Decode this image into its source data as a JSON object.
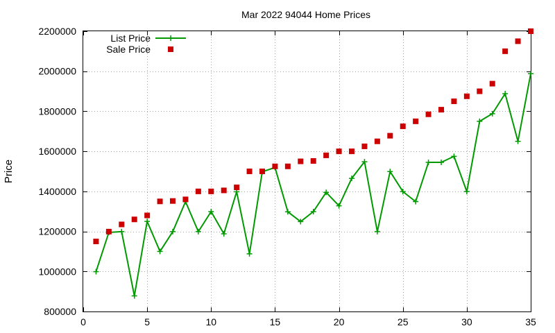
{
  "chart_data": {
    "type": "line",
    "title": "Mar 2022 94044 Home Prices",
    "xlabel": "",
    "ylabel": "Price",
    "xlim": [
      0,
      35
    ],
    "ylim": [
      800000,
      2200000
    ],
    "x_ticks": [
      0,
      5,
      10,
      15,
      20,
      25,
      30,
      35
    ],
    "y_ticks": [
      800000,
      1000000,
      1200000,
      1400000,
      1600000,
      1800000,
      2000000,
      2200000
    ],
    "x_tick_labels": [
      "0",
      "5",
      "10",
      "15",
      "20",
      "25",
      "30",
      "35"
    ],
    "y_tick_labels": [
      "800000",
      "1000000",
      "1200000",
      "1400000",
      "1600000",
      "1800000",
      "2000000",
      "2200000"
    ],
    "grid": true,
    "legend_position": "top-left",
    "series": [
      {
        "name": "List Price",
        "style": "line-plus",
        "color": "#009900",
        "x": [
          1,
          2,
          3,
          4,
          5,
          6,
          7,
          8,
          9,
          10,
          11,
          12,
          13,
          14,
          15,
          16,
          17,
          18,
          19,
          20,
          21,
          22,
          23,
          24,
          25,
          26,
          27,
          28,
          29,
          30,
          31,
          32,
          33,
          34,
          35
        ],
        "y": [
          999000,
          1195000,
          1199000,
          878000,
          1250000,
          1100000,
          1199000,
          1349000,
          1199000,
          1299000,
          1188000,
          1398000,
          1088000,
          1498000,
          1519000,
          1298000,
          1249000,
          1299000,
          1395000,
          1328000,
          1465000,
          1548000,
          1199000,
          1499000,
          1399000,
          1349000,
          1545000,
          1545000,
          1575000,
          1399000,
          1750000,
          1788000,
          1888000,
          1650000,
          1988000
        ]
      },
      {
        "name": "Sale Price",
        "style": "square",
        "color": "#cc0000",
        "x": [
          1,
          2,
          3,
          4,
          5,
          6,
          7,
          8,
          9,
          10,
          11,
          12,
          13,
          14,
          15,
          16,
          17,
          18,
          19,
          20,
          21,
          22,
          23,
          24,
          25,
          26,
          27,
          28,
          29,
          30,
          31,
          32,
          33,
          34,
          35
        ],
        "y": [
          1150000,
          1199000,
          1235000,
          1260000,
          1280000,
          1350000,
          1352000,
          1360000,
          1400000,
          1400000,
          1405000,
          1420000,
          1500000,
          1500000,
          1525000,
          1525000,
          1550000,
          1552000,
          1580000,
          1600000,
          1600000,
          1625000,
          1650000,
          1678000,
          1725000,
          1750000,
          1785000,
          1808000,
          1850000,
          1875000,
          1900000,
          1938000,
          2100000,
          2150000,
          2200000
        ]
      }
    ]
  }
}
